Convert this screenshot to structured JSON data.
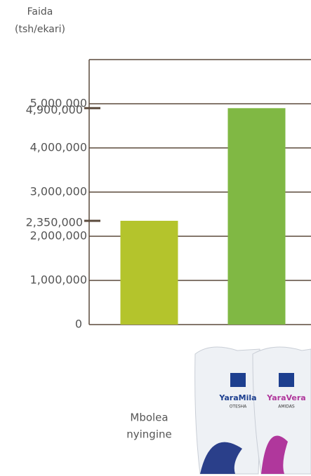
{
  "chart_data": {
    "type": "bar",
    "title": [
      "Faida",
      "(tsh/ekari)"
    ],
    "categories": [
      [
        "Mbolea",
        "nyingine"
      ],
      null
    ],
    "values": [
      2350000,
      4900000
    ],
    "value_labels": [
      "2,350,000",
      "4,900,000"
    ],
    "colors": [
      "#b4c42c",
      "#80b844"
    ],
    "ylim": [
      0,
      6000000
    ],
    "yticks": [
      0,
      {
        "value": 1000000,
        "label": "1,000,000"
      },
      {
        "value": 2000000,
        "label": "2,000,000"
      },
      {
        "value": 3000000,
        "label": "3,000,000"
      },
      {
        "value": 4000000,
        "label": "4,000,000"
      },
      {
        "value": 5000000,
        "label": "5,000,000"
      }
    ],
    "grid": true,
    "product_labels": [
      [
        "YaraMila",
        "OTESHA"
      ],
      [
        "YaraVera",
        "AMIDAS"
      ]
    ]
  }
}
